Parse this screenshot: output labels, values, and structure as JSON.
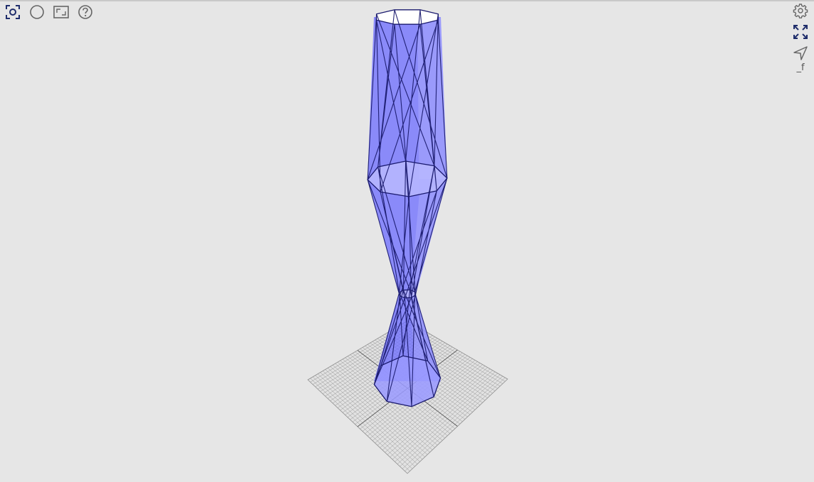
{
  "toolbar_left": [
    {
      "name": "view-in-front-icon",
      "title": ""
    },
    {
      "name": "circle-icon",
      "title": ""
    },
    {
      "name": "standard-view-icon",
      "title": ""
    },
    {
      "name": "help-icon",
      "title": ""
    }
  ],
  "toolbar_right": [
    {
      "name": "gear-icon"
    },
    {
      "name": "fullscreen-icon"
    },
    {
      "name": "navigate-icon"
    }
  ],
  "side_label": "_f",
  "colors": {
    "background": "#e6e6e6",
    "solid_fill": "#6b6bff",
    "solid_edge": "#1a1a6e",
    "face_light": "#b8b8ff",
    "face_top": "#ffffff",
    "grid": "#8c8c8c",
    "icon_active": "#1f2d6b",
    "icon_default": "#666666"
  }
}
